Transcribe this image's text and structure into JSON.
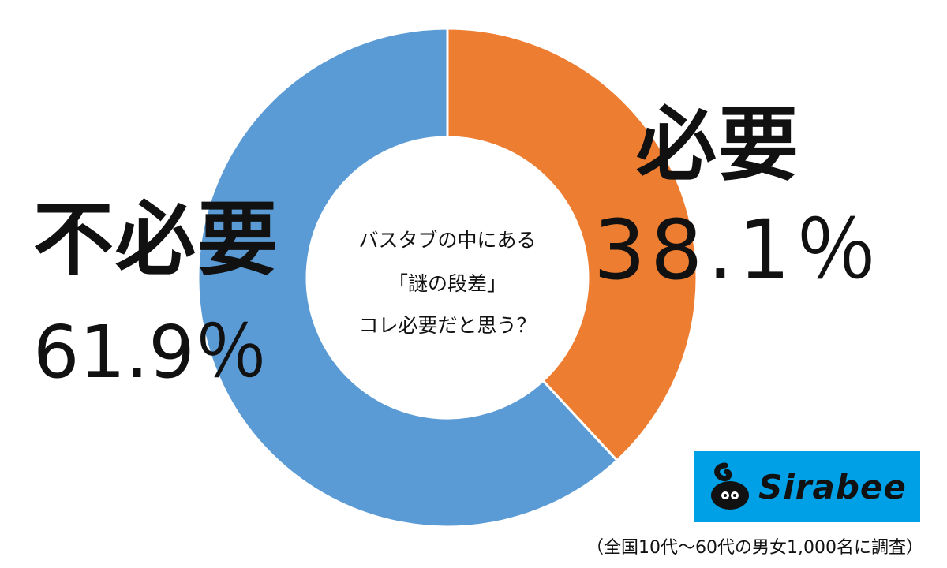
{
  "chart_data": {
    "type": "pie",
    "variant": "donut",
    "title": "バスタブの中にある「謎の段差」コレ必要だと思う？",
    "slices": [
      {
        "label": "必要",
        "value": 38.1,
        "value_label": "38.1％",
        "color": "#ed7d31"
      },
      {
        "label": "不必要",
        "value": 61.9,
        "value_label": "61.9％",
        "color": "#5b9bd5"
      }
    ],
    "start": "12 o'clock, clockwise",
    "legend": "none"
  },
  "labels": {
    "no_label": "不必要",
    "no_pct": "61.9％",
    "yes_label": "必要",
    "yes_pct": "38.1％"
  },
  "center_question": {
    "line1": "バスタブの中にある",
    "line2": "「謎の段差」",
    "line3": "コレ必要だと思う？"
  },
  "logo": {
    "text": "Sirabee",
    "background_color": "#00a0e6"
  },
  "footnote": "（全国10代～60代の男女1,000名に調査）"
}
